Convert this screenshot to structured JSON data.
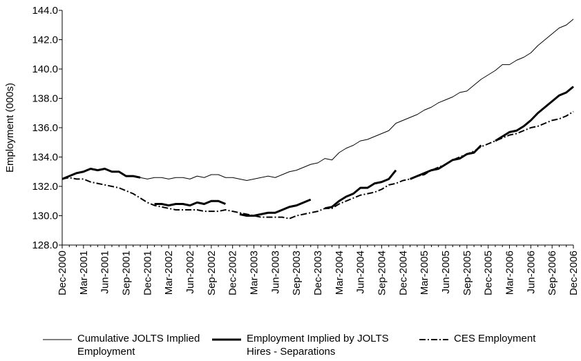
{
  "chart_data": {
    "type": "line",
    "y_label": "Employment (000s)",
    "categories": [
      "Dec-2000",
      null,
      null,
      "Mar-2001",
      null,
      null,
      "Jun-2001",
      null,
      null,
      "Sep-2001",
      null,
      null,
      "Dec-2001",
      null,
      null,
      "Mar-2002",
      null,
      null,
      "Jun-2002",
      null,
      null,
      "Sep-2002",
      null,
      null,
      "Dec-2002",
      null,
      null,
      "Mar-2003",
      null,
      null,
      "Jun-2003",
      null,
      null,
      "Sep-2003",
      null,
      null,
      "Dec-2003",
      null,
      null,
      "Mar-2004",
      null,
      null,
      "Jun-2004",
      null,
      null,
      "Sep-2004",
      null,
      null,
      "Dec-2004",
      null,
      null,
      "Mar-2005",
      null,
      null,
      "Jun-2005",
      null,
      null,
      "Sep-2005",
      null,
      null,
      "Dec-2005",
      null,
      null,
      "Mar-2006",
      null,
      null,
      "Jun-2006",
      null,
      null,
      "Sep-2006",
      null,
      null,
      "Dec-2006"
    ],
    "series": [
      {
        "name": "Cumulative JOLTS Implied Employment",
        "color": "#000000",
        "style": "thin",
        "values": [
          132.5,
          132.7,
          132.9,
          133.0,
          133.2,
          133.1,
          133.2,
          133.0,
          133.0,
          132.7,
          132.7,
          132.6,
          132.5,
          132.6,
          132.6,
          132.5,
          132.6,
          132.6,
          132.5,
          132.7,
          132.6,
          132.8,
          132.8,
          132.6,
          132.6,
          132.5,
          132.4,
          132.5,
          132.6,
          132.7,
          132.6,
          132.8,
          133.0,
          133.1,
          133.3,
          133.5,
          133.6,
          133.9,
          133.8,
          134.3,
          134.6,
          134.8,
          135.1,
          135.2,
          135.4,
          135.6,
          135.8,
          136.3,
          136.5,
          136.7,
          136.9,
          137.2,
          137.4,
          137.7,
          137.9,
          138.1,
          138.4,
          138.5,
          138.9,
          139.3,
          139.6,
          139.9,
          140.3,
          140.3,
          140.6,
          140.8,
          141.1,
          141.6,
          142.0,
          142.4,
          142.8,
          143.0,
          143.4
        ]
      },
      {
        "name": "Employment Implied by JOLTS Hires - Separations",
        "color": "#000000",
        "style": "thick",
        "values": [
          132.5,
          132.7,
          132.9,
          133.0,
          133.2,
          133.1,
          133.2,
          133.0,
          133.0,
          132.7,
          132.7,
          132.6,
          null,
          130.8,
          130.8,
          130.7,
          130.8,
          130.8,
          130.7,
          130.9,
          130.8,
          131.0,
          131.0,
          130.8,
          null,
          130.1,
          130.0,
          130.0,
          130.1,
          130.2,
          130.2,
          130.4,
          130.6,
          130.7,
          130.9,
          131.1,
          null,
          130.5,
          130.6,
          131.0,
          131.3,
          131.5,
          131.9,
          131.9,
          132.2,
          132.3,
          132.5,
          133.1,
          null,
          132.5,
          132.7,
          132.9,
          133.1,
          133.2,
          133.5,
          133.8,
          133.9,
          134.2,
          134.3,
          134.8,
          null,
          135.1,
          135.4,
          135.7,
          135.8,
          136.1,
          136.5,
          137.0,
          137.4,
          137.8,
          138.2,
          138.4,
          138.8
        ]
      },
      {
        "name": "CES Employment",
        "color": "#000000",
        "style": "dash-dot",
        "values": [
          132.5,
          132.6,
          132.5,
          132.5,
          132.3,
          132.2,
          132.1,
          132.0,
          131.9,
          131.7,
          131.5,
          131.2,
          130.9,
          130.7,
          130.6,
          130.5,
          130.4,
          130.4,
          130.4,
          130.4,
          130.3,
          130.3,
          130.3,
          130.4,
          130.3,
          130.2,
          130.1,
          130.0,
          129.9,
          129.9,
          129.9,
          129.9,
          129.8,
          130.0,
          130.1,
          130.2,
          130.3,
          130.5,
          130.5,
          130.8,
          131.0,
          131.2,
          131.4,
          131.5,
          131.6,
          131.8,
          132.1,
          132.2,
          132.4,
          132.5,
          132.7,
          132.8,
          133.1,
          133.3,
          133.5,
          133.8,
          134.0,
          134.2,
          134.4,
          134.7,
          134.9,
          135.1,
          135.3,
          135.5,
          135.6,
          135.8,
          136.0,
          136.1,
          136.3,
          136.5,
          136.6,
          136.8,
          137.1
        ]
      }
    ],
    "ylim": [
      128,
      144
    ],
    "yticks": [
      {
        "value": 128,
        "label": "128.0"
      },
      {
        "value": 130,
        "label": "130.0"
      },
      {
        "value": 132,
        "label": "132.0"
      },
      {
        "value": 134,
        "label": "134.0"
      },
      {
        "value": 136,
        "label": "136.0"
      },
      {
        "value": 138,
        "label": "138.0"
      },
      {
        "value": 140,
        "label": "140.0"
      },
      {
        "value": 142,
        "label": "142.0"
      },
      {
        "value": 144,
        "label": "144.0"
      }
    ],
    "grid": false,
    "legend": "bottom"
  }
}
